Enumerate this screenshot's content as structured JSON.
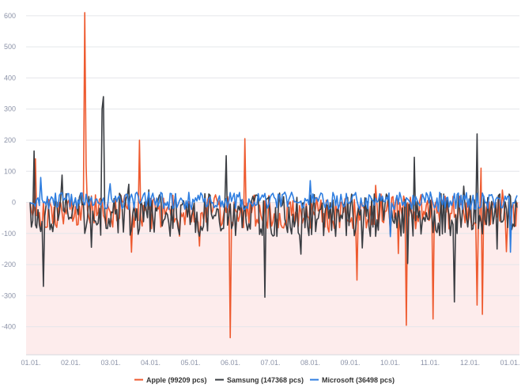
{
  "colors": {
    "apple": "#ee5a2f",
    "samsung": "#3a3d42",
    "microsoft": "#2f7ee0",
    "negative_fill": "#fdecec",
    "grid": "#e4e6ea",
    "axis_text": "#8c93a8"
  },
  "chart_data": {
    "type": "line",
    "title": "",
    "xlabel": "",
    "ylabel": "",
    "ylim": [
      -490,
      620
    ],
    "yticks": [
      600,
      500,
      400,
      300,
      200,
      100,
      0,
      -100,
      -200,
      -300,
      -400
    ],
    "x_ticks": [
      "01.01.",
      "02.01.",
      "03.01.",
      "04.01.",
      "05.01.",
      "06.01.",
      "07.01.",
      "08.01.",
      "09.01.",
      "10.01.",
      "11.01.",
      "12.01.",
      "01.01."
    ],
    "grid": true,
    "negative_area_fill": true,
    "legend_position": "bottom-center",
    "series_length": 366,
    "series": [
      {
        "name": "Apple (99209 pcs)",
        "color": "#ee5a2f",
        "peaks": [
          {
            "day": 4,
            "value": 140
          },
          {
            "day": 41,
            "value": 610
          },
          {
            "day": 42,
            "value": 120
          },
          {
            "day": 82,
            "value": 200
          },
          {
            "day": 150,
            "value": -435
          },
          {
            "day": 161,
            "value": 205
          },
          {
            "day": 245,
            "value": -250
          },
          {
            "day": 282,
            "value": -395
          },
          {
            "day": 302,
            "value": -375
          },
          {
            "day": 335,
            "value": -330
          },
          {
            "day": 338,
            "value": 110
          },
          {
            "day": 339,
            "value": -360
          }
        ]
      },
      {
        "name": "Samsung (147368 pcs)",
        "color": "#3a3d42",
        "peaks": [
          {
            "day": 3,
            "value": 165
          },
          {
            "day": 10,
            "value": -270
          },
          {
            "day": 54,
            "value": 300
          },
          {
            "day": 55,
            "value": 340
          },
          {
            "day": 147,
            "value": 150
          },
          {
            "day": 176,
            "value": -305
          },
          {
            "day": 288,
            "value": 145
          },
          {
            "day": 318,
            "value": -320
          },
          {
            "day": 335,
            "value": 220
          },
          {
            "day": 350,
            "value": -150
          }
        ]
      },
      {
        "name": "Microsoft (36498 pcs)",
        "color": "#2f7ee0",
        "peaks": [
          {
            "day": 8,
            "value": 80
          },
          {
            "day": 60,
            "value": 60
          },
          {
            "day": 210,
            "value": 70
          },
          {
            "day": 270,
            "value": -110
          },
          {
            "day": 360,
            "value": -160
          }
        ]
      }
    ]
  }
}
